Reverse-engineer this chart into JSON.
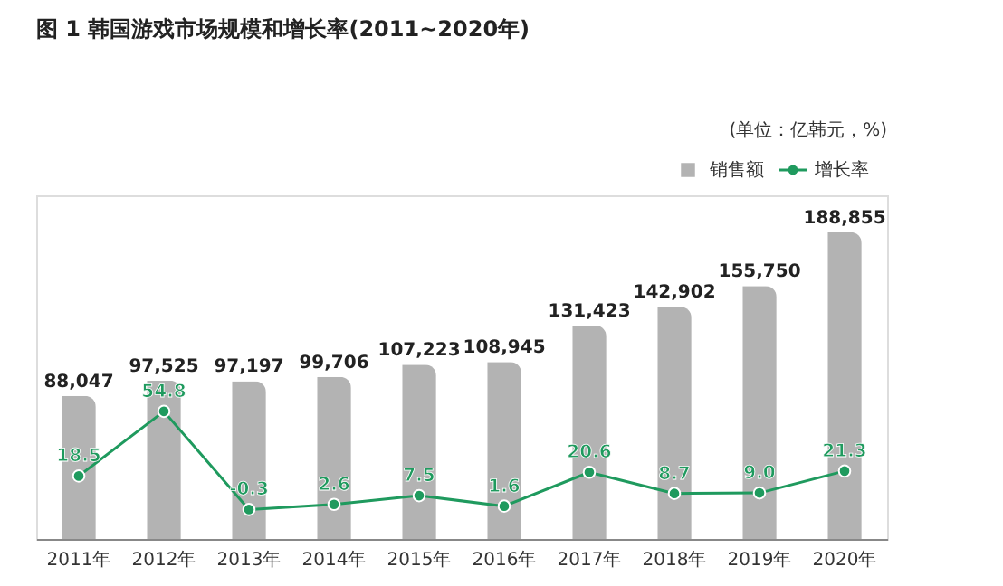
{
  "chart_data": {
    "type": "bar",
    "title": "图 1  韩国游戏市场规模和增长率(2011~2020年)",
    "annotations": [
      "(单位：亿韩元，%)"
    ],
    "categories": [
      "2011年",
      "2012年",
      "2013年",
      "2014年",
      "2015年",
      "2016年",
      "2017年",
      "2018年",
      "2019年",
      "2020年"
    ],
    "series": [
      {
        "name": "销售额",
        "color": "#b3b3b3",
        "values": [
          88047,
          97525,
          97197,
          99706,
          107223,
          108945,
          131423,
          142902,
          155750,
          188855
        ],
        "value_labels": [
          "88,047",
          "97,525",
          "97,197",
          "99,706",
          "107,223",
          "108,945",
          "131,423",
          "142,902",
          "155,750",
          "188,855"
        ]
      },
      {
        "name": "增长率",
        "type": "line",
        "axis": "y2",
        "color": "#1f9a5e",
        "values": [
          18.5,
          54.8,
          -0.3,
          2.6,
          7.5,
          1.6,
          20.6,
          8.7,
          9.0,
          21.3
        ],
        "value_labels": [
          "18.5",
          "54.8",
          "-0.3",
          "2.6",
          "7.5",
          "1.6",
          "20.6",
          "8.7",
          "9.0",
          "21.3"
        ]
      }
    ],
    "legend": "top right",
    "marker": "circle",
    "line_style": "solid",
    "grid": false
  }
}
